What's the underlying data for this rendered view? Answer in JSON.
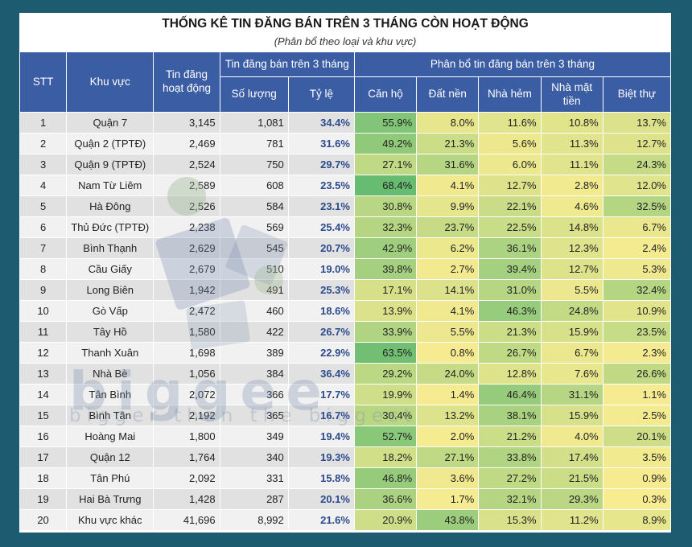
{
  "title": "THỐNG KÊ TIN ĐĂNG BÁN TRÊN 3 THÁNG CÒN HOẠT ĐỘNG",
  "subtitle": "(Phân bổ theo loại và khu vực)",
  "header": {
    "stt": "STT",
    "area": "Khu vực",
    "active": "Tin đăng hoạt động",
    "group1": "Tin đăng bán trên 3 tháng",
    "count": "Số lượng",
    "rate": "Tỷ lệ",
    "group2": "Phân bổ tin đăng bán trên 3 tháng",
    "apartment": "Căn hộ",
    "land": "Đất nền",
    "alley": "Nhà hẻm",
    "frontage": "Nhà mặt tiền",
    "villa": "Biệt thự"
  },
  "watermark": {
    "brand": "biggee",
    "tagline": "bigger than the biggest"
  },
  "colors": {
    "header_bg": "#3b5da3",
    "rate_text": "#2c4a8c",
    "scale_low": "#f9ec91",
    "scale_high": "#68bc72"
  },
  "rows": [
    {
      "stt": "1",
      "area": "Quận 7",
      "active": "3,145",
      "count": "1,081",
      "rate": "34.4%",
      "apartment": "55.9%",
      "land": "8.0%",
      "alley": "11.6%",
      "frontage": "10.8%",
      "villa": "13.7%"
    },
    {
      "stt": "2",
      "area": "Quận 2 (TPTĐ)",
      "active": "2,469",
      "count": "781",
      "rate": "31.6%",
      "apartment": "49.2%",
      "land": "21.3%",
      "alley": "5.6%",
      "frontage": "11.3%",
      "villa": "12.7%"
    },
    {
      "stt": "3",
      "area": "Quận 9 (TPTĐ)",
      "active": "2,524",
      "count": "750",
      "rate": "29.7%",
      "apartment": "27.1%",
      "land": "31.6%",
      "alley": "6.0%",
      "frontage": "11.1%",
      "villa": "24.3%"
    },
    {
      "stt": "4",
      "area": "Nam Từ Liêm",
      "active": "2,589",
      "count": "608",
      "rate": "23.5%",
      "apartment": "68.4%",
      "land": "4.1%",
      "alley": "12.7%",
      "frontage": "2.8%",
      "villa": "12.0%"
    },
    {
      "stt": "5",
      "area": "Hà Đông",
      "active": "2,526",
      "count": "584",
      "rate": "23.1%",
      "apartment": "30.8%",
      "land": "9.9%",
      "alley": "22.1%",
      "frontage": "4.6%",
      "villa": "32.5%"
    },
    {
      "stt": "6",
      "area": "Thủ Đức (TPTĐ)",
      "active": "2,238",
      "count": "569",
      "rate": "25.4%",
      "apartment": "32.3%",
      "land": "23.7%",
      "alley": "22.5%",
      "frontage": "14.8%",
      "villa": "6.7%"
    },
    {
      "stt": "7",
      "area": "Bình Thạnh",
      "active": "2,629",
      "count": "545",
      "rate": "20.7%",
      "apartment": "42.9%",
      "land": "6.2%",
      "alley": "36.1%",
      "frontage": "12.3%",
      "villa": "2.4%"
    },
    {
      "stt": "8",
      "area": "Cầu Giấy",
      "active": "2,679",
      "count": "510",
      "rate": "19.0%",
      "apartment": "39.8%",
      "land": "2.7%",
      "alley": "39.4%",
      "frontage": "12.7%",
      "villa": "5.3%"
    },
    {
      "stt": "9",
      "area": "Long Biên",
      "active": "1,942",
      "count": "491",
      "rate": "25.3%",
      "apartment": "17.1%",
      "land": "14.1%",
      "alley": "31.0%",
      "frontage": "5.5%",
      "villa": "32.4%"
    },
    {
      "stt": "10",
      "area": "Gò Vấp",
      "active": "2,472",
      "count": "460",
      "rate": "18.6%",
      "apartment": "13.9%",
      "land": "4.1%",
      "alley": "46.3%",
      "frontage": "24.8%",
      "villa": "10.9%"
    },
    {
      "stt": "11",
      "area": "Tây Hồ",
      "active": "1,580",
      "count": "422",
      "rate": "26.7%",
      "apartment": "33.9%",
      "land": "5.5%",
      "alley": "21.3%",
      "frontage": "15.9%",
      "villa": "23.5%"
    },
    {
      "stt": "12",
      "area": "Thanh Xuân",
      "active": "1,698",
      "count": "389",
      "rate": "22.9%",
      "apartment": "63.5%",
      "land": "0.8%",
      "alley": "26.7%",
      "frontage": "6.7%",
      "villa": "2.3%"
    },
    {
      "stt": "13",
      "area": "Nhà Bè",
      "active": "1,056",
      "count": "384",
      "rate": "36.4%",
      "apartment": "29.2%",
      "land": "24.0%",
      "alley": "12.8%",
      "frontage": "7.6%",
      "villa": "26.6%"
    },
    {
      "stt": "14",
      "area": "Tân Bình",
      "active": "2,072",
      "count": "366",
      "rate": "17.7%",
      "apartment": "19.9%",
      "land": "1.4%",
      "alley": "46.4%",
      "frontage": "31.1%",
      "villa": "1.1%"
    },
    {
      "stt": "15",
      "area": "Bình Tân",
      "active": "2,192",
      "count": "365",
      "rate": "16.7%",
      "apartment": "30.4%",
      "land": "13.2%",
      "alley": "38.1%",
      "frontage": "15.9%",
      "villa": "2.5%"
    },
    {
      "stt": "16",
      "area": "Hoàng Mai",
      "active": "1,800",
      "count": "349",
      "rate": "19.4%",
      "apartment": "52.7%",
      "land": "2.0%",
      "alley": "21.2%",
      "frontage": "4.0%",
      "villa": "20.1%"
    },
    {
      "stt": "17",
      "area": "Quận 12",
      "active": "1,764",
      "count": "340",
      "rate": "19.3%",
      "apartment": "18.2%",
      "land": "27.1%",
      "alley": "33.8%",
      "frontage": "17.4%",
      "villa": "3.5%"
    },
    {
      "stt": "18",
      "area": "Tân Phú",
      "active": "2,092",
      "count": "331",
      "rate": "15.8%",
      "apartment": "46.8%",
      "land": "3.6%",
      "alley": "27.2%",
      "frontage": "21.5%",
      "villa": "0.9%"
    },
    {
      "stt": "19",
      "area": "Hai Bà Trưng",
      "active": "1,428",
      "count": "287",
      "rate": "20.1%",
      "apartment": "36.6%",
      "land": "1.7%",
      "alley": "32.1%",
      "frontage": "29.3%",
      "villa": "0.3%"
    },
    {
      "stt": "20",
      "area": "Khu vực khác",
      "active": "41,696",
      "count": "8,992",
      "rate": "21.6%",
      "apartment": "20.9%",
      "land": "43.8%",
      "alley": "15.3%",
      "frontage": "11.2%",
      "villa": "8.9%"
    }
  ]
}
